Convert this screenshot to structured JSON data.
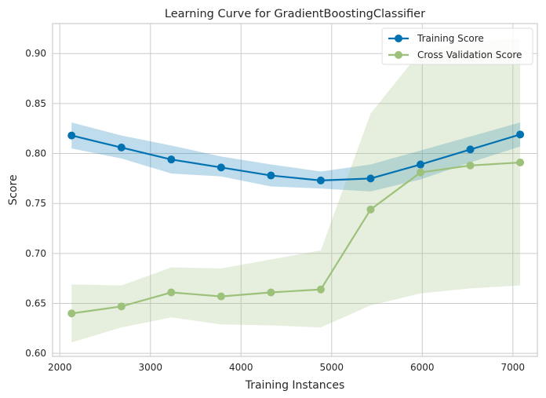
{
  "chart_data": {
    "type": "line",
    "title": "Learning Curve for GradientBoostingClassifier",
    "xlabel": "Training Instances",
    "ylabel": "Score",
    "xlim": [
      1920,
      7270
    ],
    "ylim": [
      0.597,
      0.93
    ],
    "xticks": [
      2000,
      3000,
      4000,
      5000,
      6000,
      7000
    ],
    "yticks": [
      0.6,
      0.65,
      0.7,
      0.75,
      0.8,
      0.85,
      0.9
    ],
    "grid": true,
    "legend_position": "top-right",
    "x": [
      2130,
      2680,
      3230,
      3780,
      4330,
      4880,
      5430,
      5980,
      6530,
      7080
    ],
    "series": [
      {
        "name": "Training Score",
        "color": "#0072b2",
        "fill_color": "#0072b2",
        "fill_opacity": 0.25,
        "values": [
          0.818,
          0.806,
          0.794,
          0.786,
          0.778,
          0.773,
          0.775,
          0.789,
          0.804,
          0.819
        ],
        "lower": [
          0.805,
          0.795,
          0.78,
          0.777,
          0.767,
          0.765,
          0.762,
          0.774,
          0.791,
          0.807
        ],
        "upper": [
          0.831,
          0.818,
          0.808,
          0.797,
          0.789,
          0.782,
          0.789,
          0.803,
          0.817,
          0.831
        ]
      },
      {
        "name": "Cross Validation Score",
        "color": "#9bc17a",
        "fill_color": "#9bc17a",
        "fill_opacity": 0.25,
        "values": [
          0.64,
          0.647,
          0.661,
          0.657,
          0.661,
          0.664,
          0.744,
          0.781,
          0.788,
          0.791
        ],
        "lower": [
          0.611,
          0.626,
          0.636,
          0.629,
          0.628,
          0.626,
          0.648,
          0.66,
          0.665,
          0.668
        ],
        "upper": [
          0.669,
          0.668,
          0.686,
          0.685,
          0.694,
          0.703,
          0.84,
          0.902,
          0.912,
          0.915
        ]
      }
    ]
  }
}
